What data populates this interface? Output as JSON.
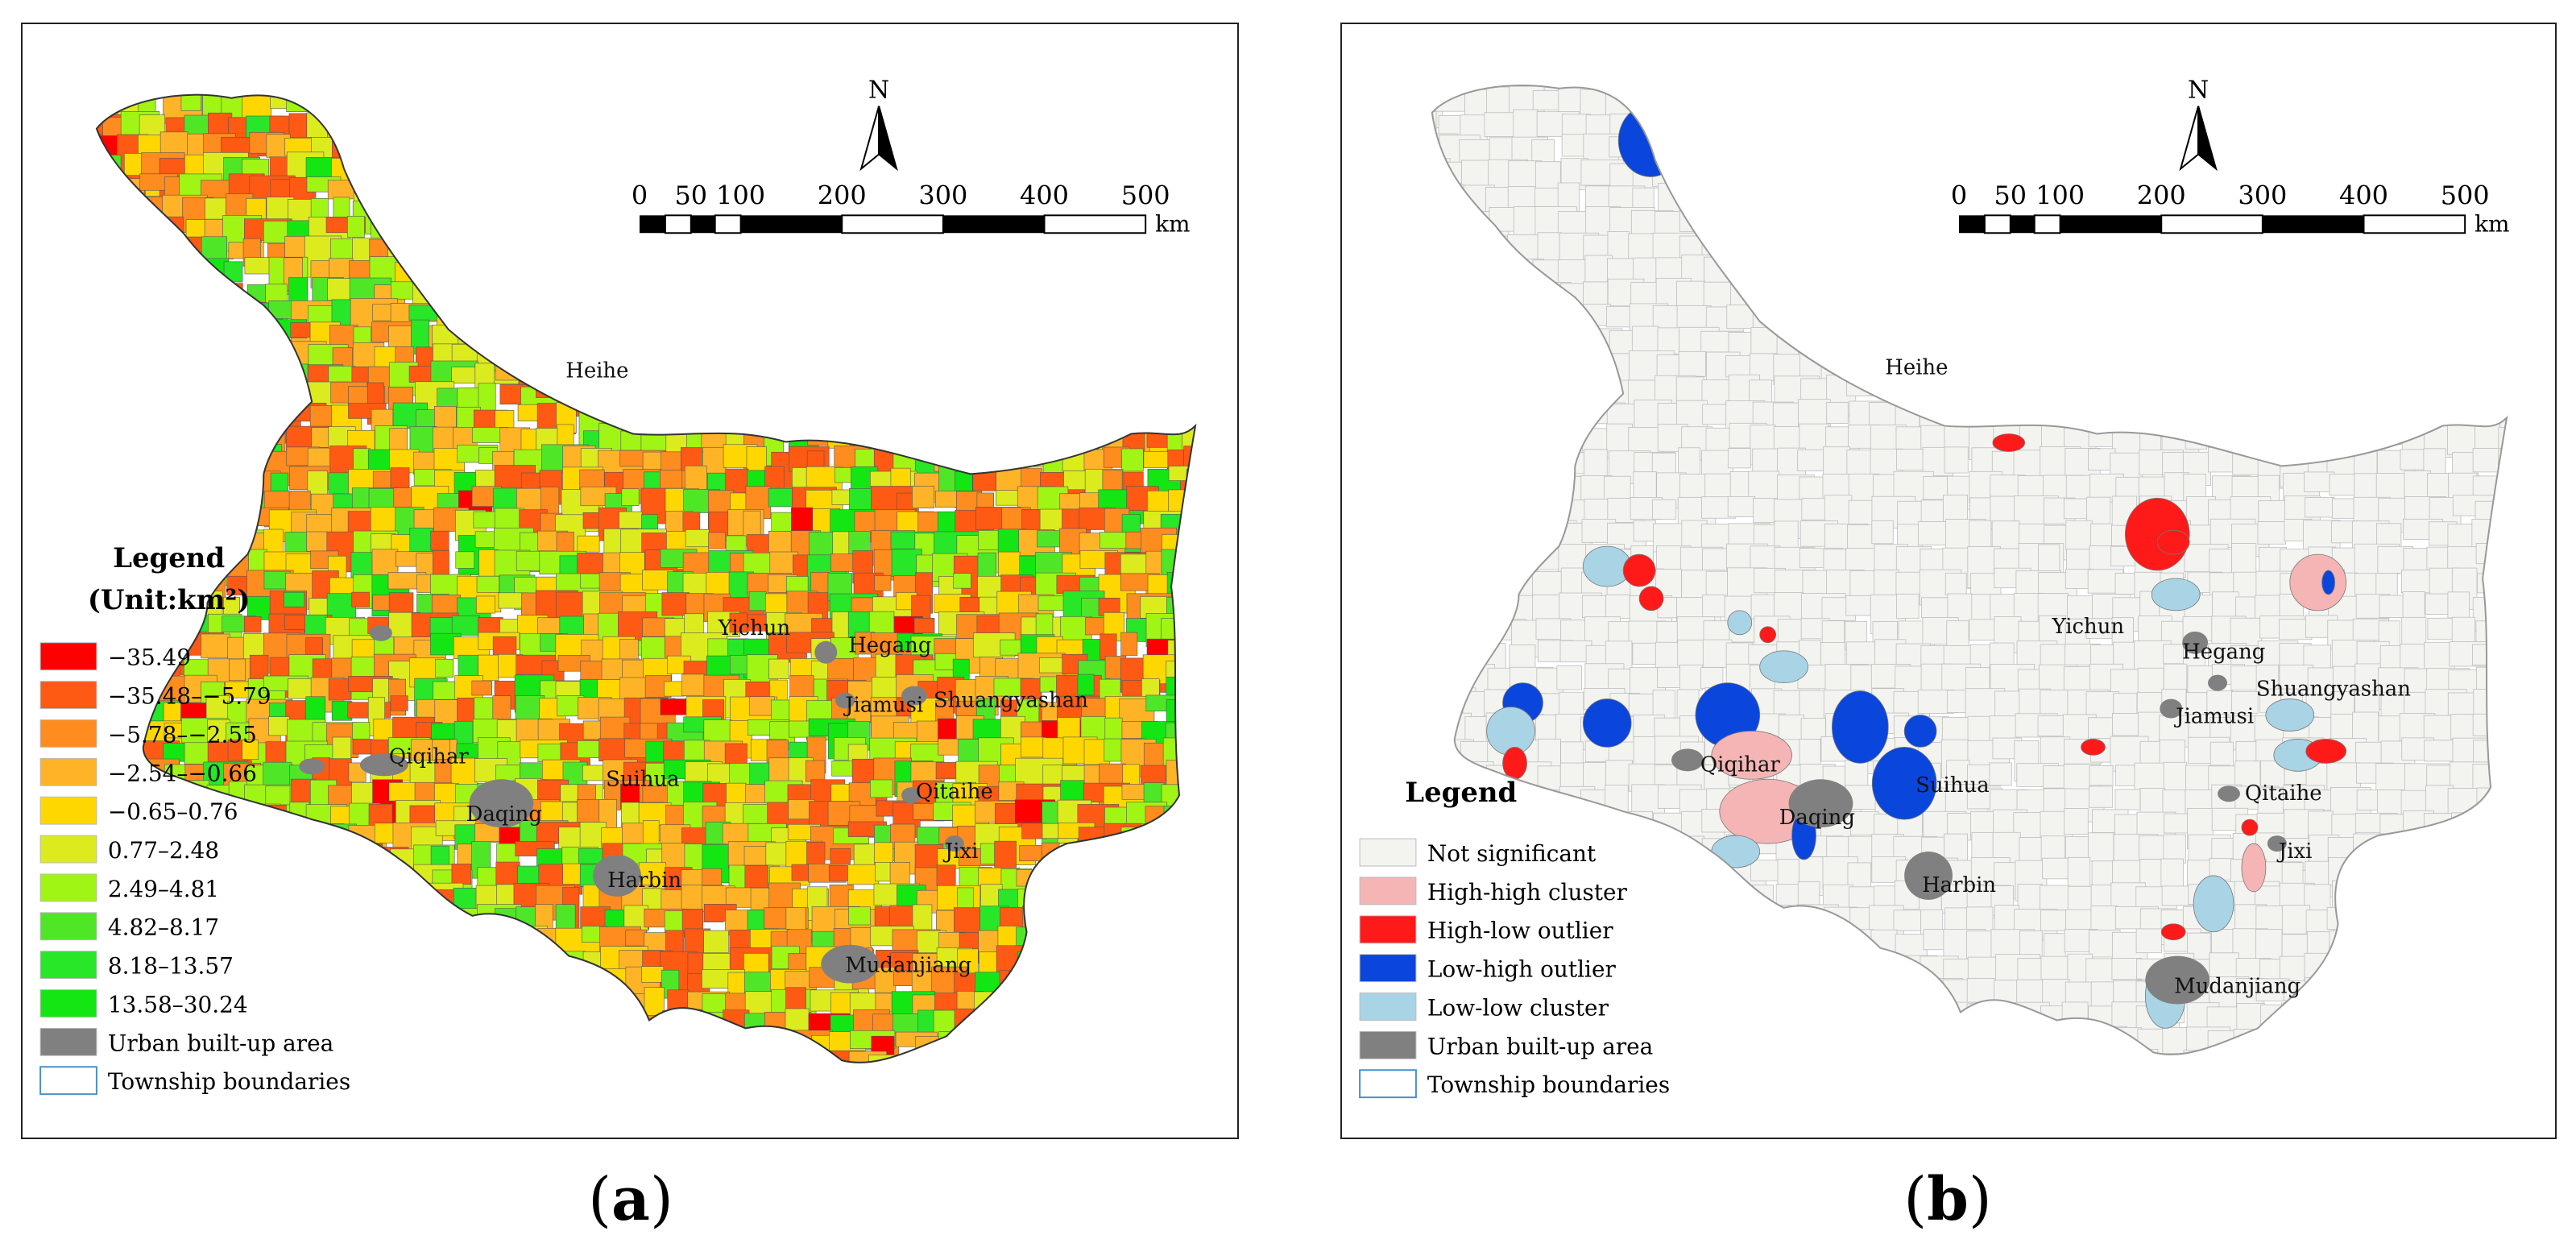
{
  "panel_a": {
    "north_label": "N",
    "scale": {
      "ticks": [
        "0",
        "50",
        "100",
        "200",
        "300",
        "400",
        "500"
      ],
      "unit": "km"
    },
    "legend_title": "Legend",
    "legend_unit": "(Unit:km²)",
    "legend_items": [
      {
        "label": "−35.49",
        "color": "#ff0000"
      },
      {
        "label": "−35.48–−5.79",
        "color": "#ff5a14"
      },
      {
        "label": "−5.78–−2.55",
        "color": "#ff8c1e"
      },
      {
        "label": "−2.54–−0.66",
        "color": "#ffb428"
      },
      {
        "label": "−0.65–0.76",
        "color": "#ffd700"
      },
      {
        "label": "0.77–2.48",
        "color": "#dceb1e"
      },
      {
        "label": "2.49–4.81",
        "color": "#a0f514"
      },
      {
        "label": "4.82–8.17",
        "color": "#50e628"
      },
      {
        "label": "8.18–13.57",
        "color": "#28e628"
      },
      {
        "label": "13.58–30.24",
        "color": "#14e614"
      },
      {
        "label": "Urban built-up area",
        "color": "#808080"
      },
      {
        "label": "Township boundaries",
        "color": "#ffffff",
        "stroke": "#4a90c8"
      }
    ],
    "cities": [
      "Heihe",
      "Yichun",
      "Hegang",
      "Jiamusi",
      "Shuangyashan",
      "Qiqihar",
      "Suihua",
      "Daqing",
      "Qitaihe",
      "Jixi",
      "Harbin",
      "Mudanjiang"
    ],
    "caption": {
      "open": "(",
      "letter": "a",
      "close": ")"
    }
  },
  "panel_b": {
    "north_label": "N",
    "scale": {
      "ticks": [
        "0",
        "50",
        "100",
        "200",
        "300",
        "400",
        "500"
      ],
      "unit": "km"
    },
    "legend_title": "Legend",
    "legend_items": [
      {
        "label": "Not significant",
        "color": "#f3f3f0"
      },
      {
        "label": "High-high cluster",
        "color": "#f6b5b5"
      },
      {
        "label": "High-low outlier",
        "color": "#ff1a1a"
      },
      {
        "label": "Low-high outlier",
        "color": "#0a46dc"
      },
      {
        "label": "Low-low cluster",
        "color": "#a8d4e6"
      },
      {
        "label": "Urban built-up area",
        "color": "#808080"
      },
      {
        "label": "Township boundaries",
        "color": "#ffffff",
        "stroke": "#4a90c8"
      }
    ],
    "cities": [
      "Heihe",
      "Yichun",
      "Hegang",
      "Shuangyashan",
      "Jiamusi",
      "Qiqihar",
      "Suihua",
      "Daqing",
      "Qitaihe",
      "Jixi",
      "Harbin",
      "Mudanjiang"
    ],
    "caption": {
      "open": "(",
      "letter": "b",
      "close": ")"
    }
  }
}
